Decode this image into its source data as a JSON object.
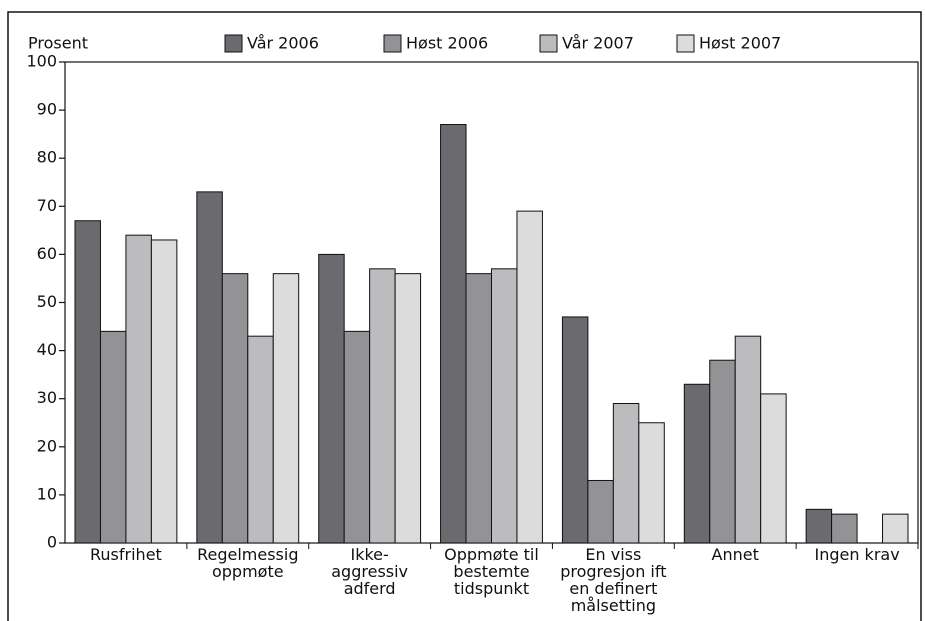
{
  "chart_data": {
    "type": "bar",
    "y_label": "Prosent",
    "categories": [
      [
        "Rusfrihet"
      ],
      [
        "Regelmessig",
        "oppmøte"
      ],
      [
        "Ikke-",
        "aggressiv",
        "adferd"
      ],
      [
        "Oppmøte til",
        "bestemte",
        "tidspunkt"
      ],
      [
        "En viss",
        "progresjon ift",
        "en definert",
        "målsetting"
      ],
      [
        "Annet"
      ],
      [
        "Ingen krav"
      ]
    ],
    "series": [
      {
        "name": "Vår 2006",
        "color": "#6b6b6f",
        "values": [
          67,
          73,
          60,
          87,
          47,
          33,
          7
        ]
      },
      {
        "name": "Høst 2006",
        "color": "#939396",
        "values": [
          44,
          56,
          44,
          56,
          13,
          38,
          6
        ]
      },
      {
        "name": "Vår 2007",
        "color": "#bcbcbe",
        "values": [
          64,
          43,
          57,
          57,
          29,
          43,
          null
        ]
      },
      {
        "name": "Høst 2007",
        "color": "#dcdcdd",
        "values": [
          63,
          56,
          56,
          69,
          25,
          31,
          6
        ]
      }
    ],
    "ylim": [
      0,
      100
    ],
    "yticks": [
      0,
      10,
      20,
      30,
      40,
      50,
      60,
      70,
      80,
      90,
      100
    ],
    "legend": "top"
  }
}
